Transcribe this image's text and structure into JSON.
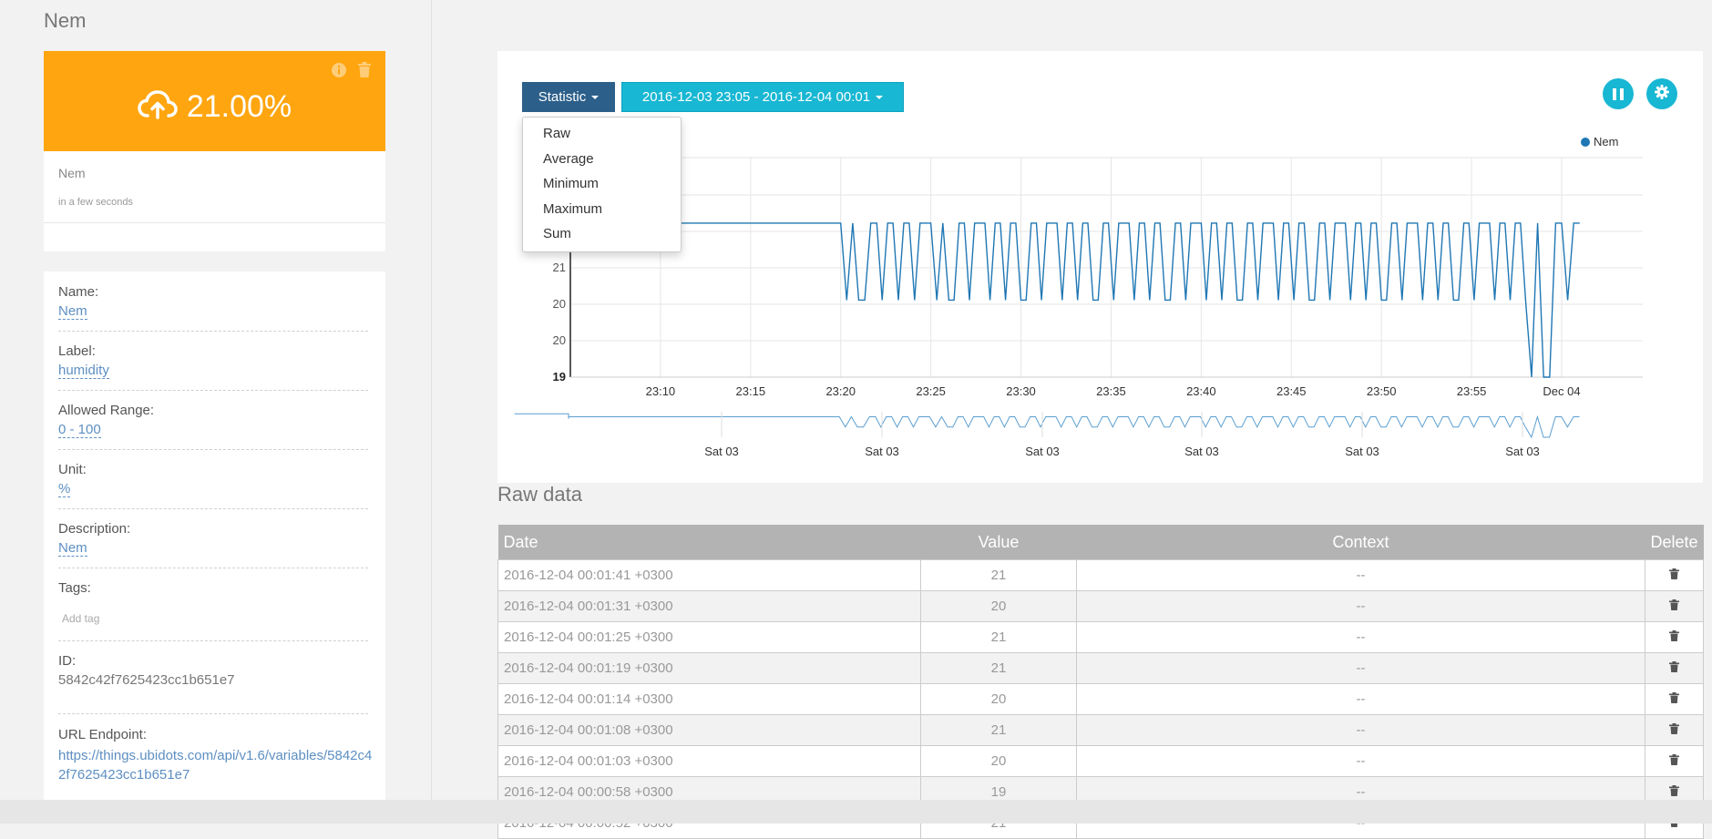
{
  "variable_name": "Nem",
  "value_card": {
    "value": "21.00%",
    "background": "#ffa50f",
    "icons": [
      "cloud-upload-icon",
      "info-icon",
      "trash-icon"
    ]
  },
  "meta_card": {
    "name": "Nem",
    "last_updated": "in a few seconds"
  },
  "properties": {
    "name_label": "Name:",
    "name_value": "Nem",
    "label_label": "Label:",
    "label_value": "humidity",
    "range_label": "Allowed Range:",
    "range_value": "0 - 100",
    "unit_label": "Unit:",
    "unit_value": "%",
    "description_label": "Description:",
    "description_value": "Nem",
    "tags_label": "Tags:",
    "tags_placeholder": "Add tag",
    "id_label": "ID:",
    "id_value": "5842c42f7625423cc1b651e7",
    "url_label": "URL Endpoint:",
    "url_value": "https://things.ubidots.com/api/v1.6/variables/5842c42f7625423cc1b651e7"
  },
  "toolbar": {
    "statistic_label": "Statistic",
    "date_range": "2016-12-03 23:05 - 2016-12-04 00:01",
    "pause_icon": "pause-icon",
    "settings_icon": "gear-icon",
    "accent": "#18b7d3",
    "primary": "#2c5f8a"
  },
  "statistic_menu": [
    "Raw",
    "Average",
    "Minimum",
    "Maximum",
    "Sum"
  ],
  "chart_data": {
    "type": "line",
    "legend": {
      "entries": [
        "Nem"
      ],
      "placement": "top-right"
    },
    "series": [
      {
        "name": "Nem",
        "color": "#1f77b4",
        "x": [
          "23:05",
          "23:20",
          "23:21",
          "23:22",
          "23:25",
          "23:26",
          "23:28",
          "23:30",
          "23:32",
          "23:34",
          "23:36",
          "23:38",
          "23:40",
          "23:42",
          "23:44",
          "23:46",
          "23:48",
          "23:50",
          "23:52",
          "23:54",
          "23:56",
          "23:58",
          "23:59",
          "00:00",
          "00:01"
        ],
        "y": [
          21,
          21,
          20,
          21,
          21,
          20,
          21,
          20,
          21,
          20,
          21,
          20,
          21,
          20,
          21,
          20,
          21,
          20,
          21,
          20,
          21,
          20,
          19,
          21,
          21
        ]
      }
    ],
    "y_ticks": [
      "19",
      "20",
      "20",
      "21"
    ],
    "x_ticks": [
      "23:10",
      "23:15",
      "23:20",
      "23:25",
      "23:30",
      "23:35",
      "23:40",
      "23:45",
      "23:50",
      "23:55",
      "Dec 04"
    ],
    "navigator_ticks": [
      "Sat 03",
      "Sat 03",
      "Sat 03",
      "Sat 03",
      "Sat 03",
      "Sat 03"
    ],
    "grid": true
  },
  "raw_data": {
    "title": "Raw data",
    "headers": [
      "Date",
      "Value",
      "Context",
      "Delete"
    ],
    "rows": [
      {
        "date": "2016-12-04 00:01:41 +0300",
        "value": "21",
        "context": "--"
      },
      {
        "date": "2016-12-04 00:01:31 +0300",
        "value": "20",
        "context": "--"
      },
      {
        "date": "2016-12-04 00:01:25 +0300",
        "value": "21",
        "context": "--"
      },
      {
        "date": "2016-12-04 00:01:19 +0300",
        "value": "21",
        "context": "--"
      },
      {
        "date": "2016-12-04 00:01:14 +0300",
        "value": "20",
        "context": "--"
      },
      {
        "date": "2016-12-04 00:01:08 +0300",
        "value": "21",
        "context": "--"
      },
      {
        "date": "2016-12-04 00:01:03 +0300",
        "value": "20",
        "context": "--"
      },
      {
        "date": "2016-12-04 00:00:58 +0300",
        "value": "19",
        "context": "--"
      },
      {
        "date": "2016-12-04 00:00:52 +0300",
        "value": "21",
        "context": "--"
      }
    ]
  }
}
